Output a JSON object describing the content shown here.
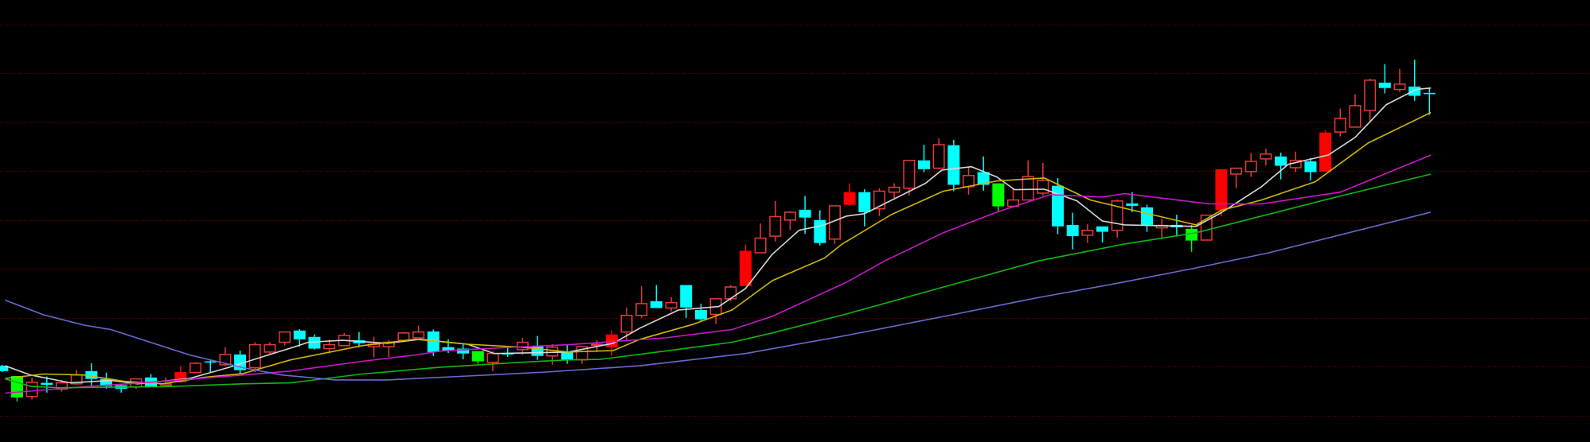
{
  "chart_data": {
    "type": "candlestick",
    "title": "",
    "xlabel": "",
    "ylabel": "",
    "xlim": [
      -0.15,
      106.8
    ],
    "ylim": [
      -5.4,
      85.0
    ],
    "grid": {
      "horizontal": true,
      "vertical": false,
      "levels": [
        0,
        10,
        20,
        30,
        40,
        50,
        60,
        70,
        80
      ],
      "style": "dotted"
    },
    "colors": {
      "background": "#000000",
      "grid": "#7a0000",
      "up_hollow": "#e8383a",
      "up_solid": "#ff0000",
      "down": "#00ffff",
      "down_green": "#00ff00"
    },
    "candle_fields": [
      "open",
      "high",
      "low",
      "close"
    ],
    "candles": [
      [
        10.2,
        10.4,
        8.9,
        9.1
      ],
      [
        8.1,
        8.1,
        2.9,
        3.7
      ],
      [
        3.9,
        7.8,
        3.3,
        6.8
      ],
      [
        6.7,
        8.0,
        4.7,
        6.3
      ],
      [
        5.4,
        7.3,
        4.9,
        6.7
      ],
      [
        6.5,
        9.4,
        6.3,
        8.3
      ],
      [
        9.1,
        10.7,
        5.7,
        7.5
      ],
      [
        7.5,
        8.8,
        5.5,
        6.0
      ],
      [
        6.2,
        6.3,
        4.7,
        5.5
      ],
      [
        5.9,
        7.6,
        5.5,
        7.5
      ],
      [
        7.8,
        8.5,
        5.9,
        6.0
      ],
      [
        6.2,
        7.8,
        6.0,
        6.5
      ],
      [
        6.8,
        10.1,
        6.7,
        8.9
      ],
      [
        8.8,
        10.9,
        8.8,
        10.7
      ],
      [
        11.1,
        11.5,
        8.9,
        10.9
      ],
      [
        10.4,
        14.0,
        10.2,
        12.5
      ],
      [
        12.5,
        13.3,
        8.5,
        9.3
      ],
      [
        9.8,
        15.0,
        8.9,
        14.5
      ],
      [
        13.0,
        15.0,
        12.4,
        14.5
      ],
      [
        15.0,
        17.2,
        14.3,
        17.1
      ],
      [
        17.4,
        17.7,
        14.1,
        15.6
      ],
      [
        16.1,
        16.6,
        13.5,
        13.7
      ],
      [
        13.7,
        15.6,
        12.7,
        14.5
      ],
      [
        14.3,
        16.9,
        14.3,
        16.4
      ],
      [
        15.4,
        17.1,
        14.0,
        14.8
      ],
      [
        14.1,
        16.1,
        11.9,
        14.6
      ],
      [
        14.1,
        15.4,
        12.0,
        15.0
      ],
      [
        15.4,
        17.1,
        15.0,
        16.9
      ],
      [
        15.9,
        18.4,
        15.9,
        17.1
      ],
      [
        17.2,
        17.6,
        12.2,
        13.0
      ],
      [
        14.0,
        15.6,
        12.8,
        13.2
      ],
      [
        13.7,
        14.8,
        11.5,
        12.7
      ],
      [
        13.2,
        13.2,
        10.6,
        11.1
      ],
      [
        10.9,
        13.2,
        9.1,
        12.7
      ],
      [
        12.8,
        13.8,
        12.0,
        12.5
      ],
      [
        13.5,
        15.9,
        12.4,
        15.0
      ],
      [
        14.3,
        16.3,
        11.4,
        12.2
      ],
      [
        12.2,
        14.6,
        10.4,
        14.0
      ],
      [
        13.0,
        14.6,
        10.6,
        11.4
      ],
      [
        11.4,
        14.1,
        10.6,
        14.1
      ],
      [
        14.5,
        15.4,
        13.0,
        14.6
      ],
      [
        14.0,
        17.4,
        12.2,
        16.6
      ],
      [
        17.1,
        22.1,
        15.4,
        20.5
      ],
      [
        20.5,
        26.5,
        20.0,
        22.9
      ],
      [
        23.4,
        26.7,
        22.0,
        22.0
      ],
      [
        22.0,
        24.2,
        21.3,
        23.1
      ],
      [
        26.7,
        26.7,
        20.0,
        22.1
      ],
      [
        21.6,
        22.9,
        19.2,
        19.7
      ],
      [
        20.7,
        23.9,
        18.7,
        23.9
      ],
      [
        23.9,
        26.7,
        23.4,
        26.3
      ],
      [
        26.5,
        35.0,
        26.5,
        33.7
      ],
      [
        33.3,
        39.3,
        33.3,
        36.3
      ],
      [
        36.7,
        43.9,
        35.6,
        40.7
      ],
      [
        40.0,
        41.8,
        37.9,
        41.6
      ],
      [
        42.1,
        44.9,
        37.2,
        40.5
      ],
      [
        40.0,
        42.0,
        34.8,
        35.3
      ],
      [
        36.1,
        42.9,
        35.1,
        42.9
      ],
      [
        43.1,
        47.5,
        42.9,
        45.7
      ],
      [
        45.7,
        46.3,
        38.7,
        41.6
      ],
      [
        42.3,
        46.5,
        40.8,
        45.9
      ],
      [
        45.7,
        47.5,
        44.2,
        46.7
      ],
      [
        46.5,
        52.2,
        45.0,
        52.2
      ],
      [
        52.2,
        55.4,
        49.8,
        50.4
      ],
      [
        50.6,
        56.7,
        50.4,
        55.4
      ],
      [
        55.3,
        56.4,
        45.9,
        47.2
      ],
      [
        46.8,
        50.9,
        45.2,
        49.1
      ],
      [
        49.8,
        53.0,
        46.0,
        47.2
      ],
      [
        47.5,
        47.5,
        41.6,
        42.8
      ],
      [
        42.8,
        46.5,
        42.8,
        44.1
      ],
      [
        44.1,
        52.2,
        44.1,
        48.9
      ],
      [
        45.5,
        51.7,
        45.0,
        48.1
      ],
      [
        47.0,
        48.6,
        37.1,
        38.7
      ],
      [
        39.0,
        41.5,
        34.0,
        36.7
      ],
      [
        36.9,
        39.2,
        35.3,
        37.9
      ],
      [
        38.7,
        38.7,
        35.4,
        37.6
      ],
      [
        37.9,
        44.2,
        36.4,
        43.9
      ],
      [
        43.4,
        45.7,
        41.6,
        42.9
      ],
      [
        42.6,
        43.1,
        37.6,
        39.0
      ],
      [
        38.4,
        40.3,
        36.1,
        38.9
      ],
      [
        39.0,
        41.1,
        36.9,
        38.5
      ],
      [
        38.2,
        39.0,
        33.5,
        35.8
      ],
      [
        35.9,
        41.0,
        35.9,
        41.0
      ],
      [
        42.0,
        50.4,
        40.8,
        50.4
      ],
      [
        49.4,
        50.6,
        46.5,
        50.6
      ],
      [
        49.9,
        53.7,
        48.8,
        52.0
      ],
      [
        52.5,
        54.6,
        51.2,
        53.5
      ],
      [
        53.0,
        53.8,
        48.3,
        51.1
      ],
      [
        50.7,
        54.0,
        49.8,
        52.2
      ],
      [
        52.0,
        52.7,
        48.1,
        49.8
      ],
      [
        49.9,
        58.4,
        49.9,
        57.9
      ],
      [
        58.0,
        62.8,
        57.1,
        60.8
      ],
      [
        59.0,
        65.7,
        59.0,
        63.4
      ],
      [
        62.4,
        68.9,
        60.2,
        68.6
      ],
      [
        68.1,
        71.9,
        65.9,
        67.0
      ],
      [
        66.7,
        70.9,
        66.2,
        67.8
      ],
      [
        67.3,
        72.8,
        64.4,
        65.4
      ],
      [
        66.0,
        67.0,
        61.5,
        66.0
      ]
    ],
    "solid_up_candles": [
      12,
      41,
      50,
      57,
      82,
      89
    ],
    "green_down_candles": [
      1,
      32,
      67,
      80
    ],
    "lines": [
      {
        "color": "#d8d8d8",
        "points": [
          [
            0.2,
            10.2
          ],
          [
            1.9,
            8.3
          ],
          [
            4.6,
            6.7
          ],
          [
            7.3,
            7.2
          ],
          [
            9.1,
            6.5
          ],
          [
            12.6,
            7.6
          ],
          [
            15.3,
            9.9
          ],
          [
            17.9,
            12.4
          ],
          [
            19.4,
            13.8
          ],
          [
            20.6,
            15.0
          ],
          [
            22.9,
            15.4
          ],
          [
            25.9,
            14.8
          ],
          [
            28.1,
            15.6
          ],
          [
            31.3,
            14.6
          ],
          [
            33.1,
            12.7
          ],
          [
            34.9,
            12.8
          ],
          [
            38.1,
            13.0
          ],
          [
            41.1,
            14.8
          ],
          [
            42.9,
            17.9
          ],
          [
            45.5,
            21.6
          ],
          [
            48.2,
            22.3
          ],
          [
            50.0,
            26.0
          ],
          [
            51.8,
            33.0
          ],
          [
            53.6,
            37.9
          ],
          [
            55.3,
            39.0
          ],
          [
            56.8,
            40.8
          ],
          [
            58.0,
            41.3
          ],
          [
            62.1,
            47.5
          ],
          [
            63.2,
            50.2
          ],
          [
            65.2,
            50.9
          ],
          [
            66.9,
            48.8
          ],
          [
            68.1,
            46.2
          ],
          [
            70.1,
            46.3
          ],
          [
            72.3,
            43.9
          ],
          [
            74.0,
            39.8
          ],
          [
            75.5,
            39.0
          ],
          [
            80.3,
            38.7
          ],
          [
            82.0,
            41.5
          ],
          [
            84.7,
            46.8
          ],
          [
            86.5,
            51.4
          ],
          [
            89.2,
            53.3
          ],
          [
            91.0,
            56.9
          ],
          [
            93.1,
            63.6
          ],
          [
            95.1,
            66.7
          ],
          [
            96.1,
            67.0
          ]
        ]
      },
      {
        "color": "#d0b800",
        "points": [
          [
            0.2,
            7.6
          ],
          [
            2.8,
            8.5
          ],
          [
            5.5,
            8.3
          ],
          [
            8.2,
            7.0
          ],
          [
            10.8,
            6.5
          ],
          [
            13.5,
            7.8
          ],
          [
            16.2,
            8.6
          ],
          [
            19.4,
            11.4
          ],
          [
            24.2,
            14.3
          ],
          [
            27.8,
            15.6
          ],
          [
            31.3,
            14.6
          ],
          [
            34.9,
            14.0
          ],
          [
            38.1,
            13.0
          ],
          [
            41.1,
            13.3
          ],
          [
            42.9,
            15.6
          ],
          [
            46.5,
            18.7
          ],
          [
            49.1,
            21.6
          ],
          [
            51.8,
            27.6
          ],
          [
            55.3,
            32.2
          ],
          [
            56.5,
            35.1
          ],
          [
            59.8,
            41.1
          ],
          [
            63.3,
            45.9
          ],
          [
            66.9,
            48.0
          ],
          [
            70.1,
            48.6
          ],
          [
            73.2,
            44.1
          ],
          [
            75.5,
            42.4
          ],
          [
            80.3,
            39.0
          ],
          [
            82.0,
            42.0
          ],
          [
            84.7,
            44.1
          ],
          [
            88.3,
            47.8
          ],
          [
            91.9,
            55.8
          ],
          [
            96.1,
            62.0
          ]
        ]
      },
      {
        "color": "#c818c8",
        "points": [
          [
            0.2,
            4.6
          ],
          [
            5.5,
            5.9
          ],
          [
            10.8,
            7.0
          ],
          [
            16.2,
            8.3
          ],
          [
            19.4,
            9.1
          ],
          [
            24.2,
            11.1
          ],
          [
            27.8,
            12.4
          ],
          [
            29.5,
            13.2
          ],
          [
            33.1,
            13.8
          ],
          [
            38.1,
            14.5
          ],
          [
            44.6,
            15.9
          ],
          [
            49.1,
            17.6
          ],
          [
            51.8,
            20.3
          ],
          [
            56.8,
            27.3
          ],
          [
            59.4,
            31.7
          ],
          [
            63.3,
            37.4
          ],
          [
            66.9,
            41.6
          ],
          [
            70.5,
            45.2
          ],
          [
            74.0,
            44.7
          ],
          [
            75.5,
            45.4
          ],
          [
            81.2,
            43.3
          ],
          [
            84.7,
            43.3
          ],
          [
            90.0,
            45.7
          ],
          [
            96.1,
            53.3
          ]
        ]
      },
      {
        "color": "#10b810",
        "points": [
          [
            0.2,
            7.5
          ],
          [
            1.9,
            6.0
          ],
          [
            3.7,
            5.7
          ],
          [
            10.8,
            5.9
          ],
          [
            16.2,
            6.5
          ],
          [
            19.4,
            6.7
          ],
          [
            24.2,
            8.5
          ],
          [
            29.5,
            9.9
          ],
          [
            34.9,
            10.9
          ],
          [
            38.1,
            11.4
          ],
          [
            40.2,
            11.5
          ],
          [
            44.6,
            13.2
          ],
          [
            49.1,
            15.0
          ],
          [
            51.8,
            16.9
          ],
          [
            56.8,
            20.8
          ],
          [
            63.2,
            26.2
          ],
          [
            69.8,
            31.7
          ],
          [
            75.5,
            35.1
          ],
          [
            80.3,
            37.4
          ],
          [
            90.0,
            44.9
          ],
          [
            96.1,
            49.4
          ]
        ]
      },
      {
        "color": "#6a6ad0",
        "points": [
          [
            0.2,
            23.6
          ],
          [
            2.8,
            20.6
          ],
          [
            5.5,
            18.5
          ],
          [
            7.3,
            17.6
          ],
          [
            12.6,
            12.4
          ],
          [
            16.2,
            9.8
          ],
          [
            18.8,
            8.3
          ],
          [
            22.4,
            7.3
          ],
          [
            25.9,
            7.3
          ],
          [
            31.3,
            8.1
          ],
          [
            36.6,
            8.9
          ],
          [
            42.9,
            10.2
          ],
          [
            50.0,
            12.7
          ],
          [
            56.8,
            16.4
          ],
          [
            64.2,
            20.8
          ],
          [
            69.6,
            24.1
          ],
          [
            74.9,
            27.0
          ],
          [
            80.3,
            30.2
          ],
          [
            85.2,
            33.3
          ],
          [
            96.1,
            41.6
          ]
        ]
      }
    ]
  }
}
